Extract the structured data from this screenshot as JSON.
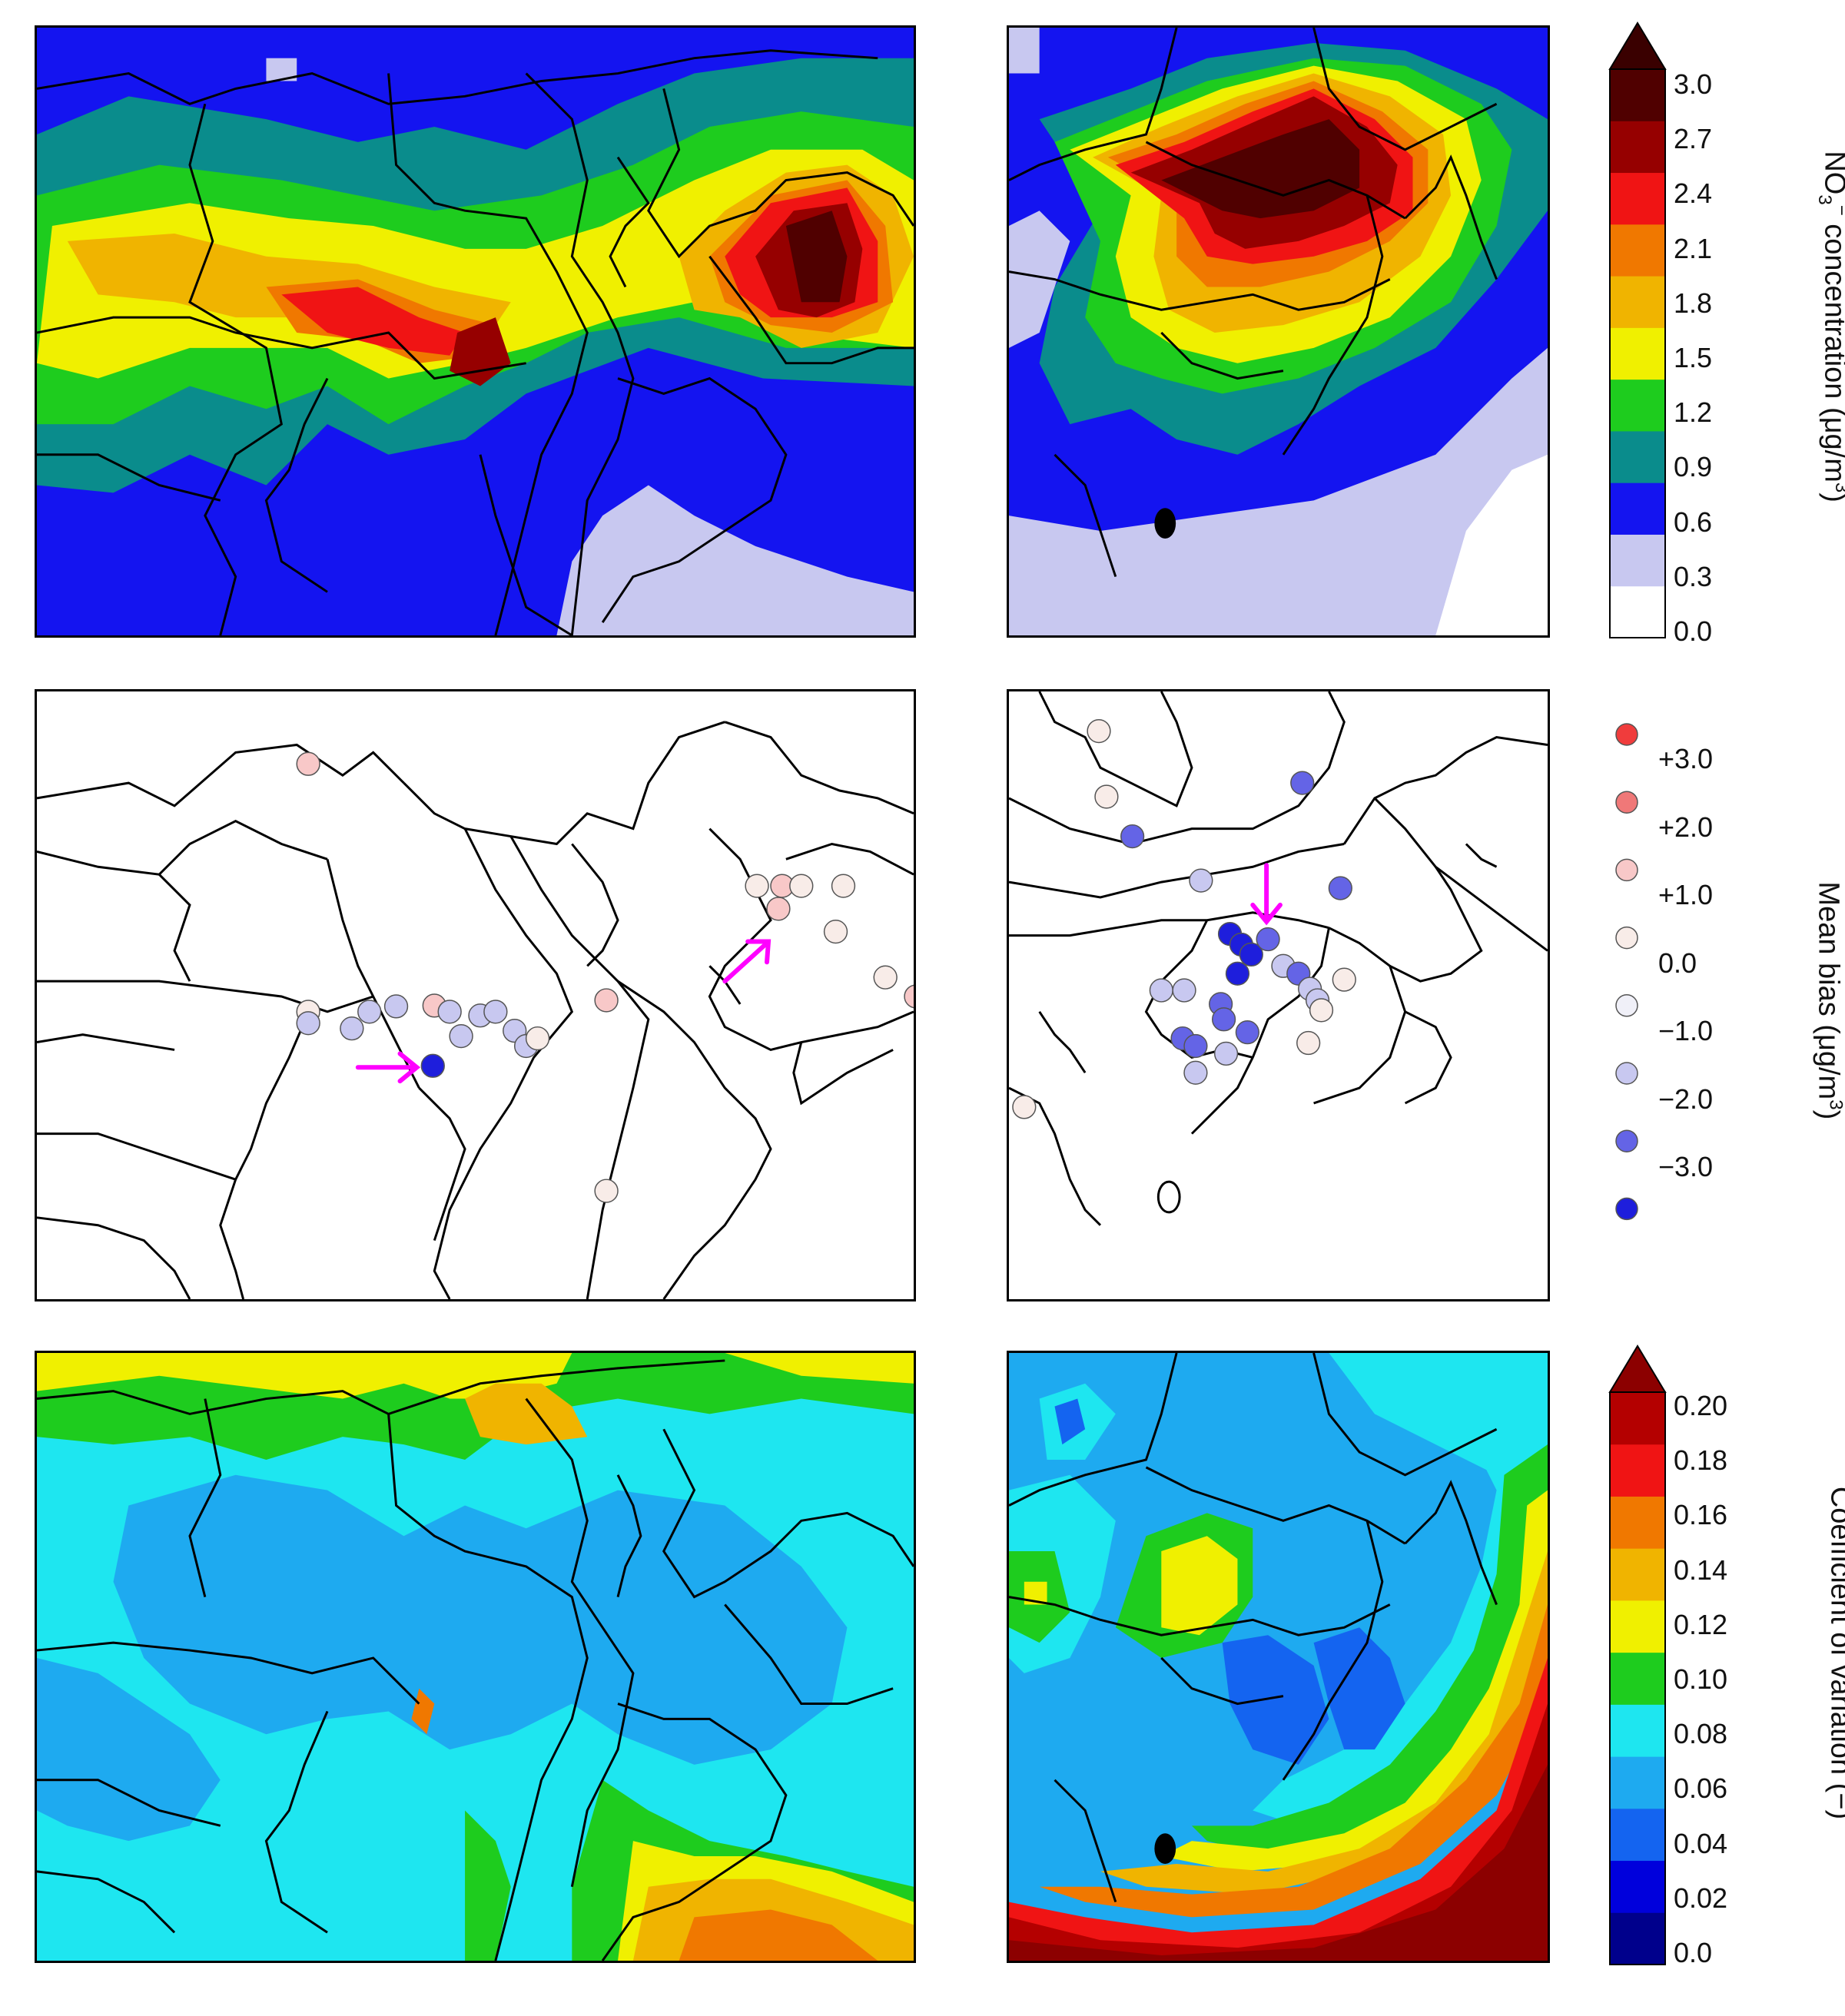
{
  "colorbars": {
    "no3": {
      "ticks": [
        "3.0",
        "2.7",
        "2.4",
        "2.1",
        "1.8",
        "1.5",
        "1.2",
        "0.9",
        "0.6",
        "0.3",
        "0.0"
      ],
      "colors": [
        "#ffffff",
        "#c8c8f0",
        "#1414f0",
        "#0a8c8c",
        "#1ecc1e",
        "#f0f000",
        "#f0b400",
        "#f07800",
        "#f01414",
        "#960000",
        "#500000"
      ],
      "extend_color": "#3a0000",
      "label_pre": "NO",
      "label_mid": "3",
      "label_sup": "−",
      "label_post": " concentration (μg/m",
      "label_unit_sup": "3",
      "label_end": ")"
    },
    "mean_bias": {
      "ticks": [
        "+3.0",
        "+2.0",
        "+1.0",
        "0.0",
        "−1.0",
        "−2.0",
        "−3.0"
      ],
      "colors": [
        "#f03c3c",
        "#f07878",
        "#f8c8c8",
        "#f8ece8",
        "#f0f0f8",
        "#c8c8f0",
        "#6464e6",
        "#1e1edc"
      ],
      "label_pre": "Mean bias (μg/m",
      "label_sup": "3",
      "label_end": ")"
    },
    "cv": {
      "ticks": [
        "0.20",
        "0.18",
        "0.16",
        "0.14",
        "0.12",
        "0.10",
        "0.08",
        "0.06",
        "0.04",
        "0.02",
        "0.0"
      ],
      "colors": [
        "#00008c",
        "#0000dc",
        "#1464f0",
        "#1eaaf0",
        "#1ee6f0",
        "#1ecc1e",
        "#f0f000",
        "#f0b400",
        "#f07800",
        "#f01414",
        "#b40000"
      ],
      "extend_color": "#8c0000",
      "label": "Coefficient of variation (−)"
    }
  },
  "panels": {
    "kansai_no3": {
      "background": "#1414f0",
      "zones": [
        {
          "color": "#0a8c8c"
        },
        {
          "color": "#1ecc1e"
        },
        {
          "color": "#f0f000"
        },
        {
          "color": "#f0b400"
        },
        {
          "color": "#f01414"
        },
        {
          "color": "#960000"
        },
        {
          "color": "#500000"
        },
        {
          "color": "#c8c8f0"
        }
      ]
    },
    "kanto_no3": {
      "background": "#1414f0"
    },
    "kansai_cv": {
      "background": "#1ee6f0"
    },
    "kanto_cv": {
      "background": "#1eaaf0"
    }
  },
  "stations": {
    "kansai": [
      {
        "bias": 0.8
      },
      {
        "bias": 0.3
      },
      {
        "bias": -1.2
      },
      {
        "bias": -1.5
      },
      {
        "bias": -1.7
      },
      {
        "bias": -1.3
      },
      {
        "bias": 0.6
      },
      {
        "bias": -1.0
      },
      {
        "bias": -1.4
      },
      {
        "bias": -1.6
      },
      {
        "bias": -1.5
      },
      {
        "bias": -1.8
      },
      {
        "bias": -3.1
      },
      {
        "bias": -1.6
      },
      {
        "bias": 0.5
      },
      {
        "bias": 0.6
      },
      {
        "bias": 0.4
      },
      {
        "bias": 0.6
      },
      {
        "bias": 0.5
      },
      {
        "bias": 0.3
      },
      {
        "bias": 0.7
      },
      {
        "bias": 0.4
      },
      {
        "bias": 0.2
      },
      {
        "bias": 0.2
      },
      {
        "bias": 0.8
      }
    ],
    "kanto": [
      {
        "bias": 0.2
      },
      {
        "bias": 0.1
      },
      {
        "bias": -2.6
      },
      {
        "bias": -2.8
      },
      {
        "bias": -1.4
      },
      {
        "bias": -2.9
      },
      {
        "bias": -3.2
      },
      {
        "bias": -3.3
      },
      {
        "bias": -3.1
      },
      {
        "bias": -2.9
      },
      {
        "bias": -3.0
      },
      {
        "bias": -1.7
      },
      {
        "bias": -2.3
      },
      {
        "bias": -1.2
      },
      {
        "bias": -1.0
      },
      {
        "bias": 0.1
      },
      {
        "bias": 0.3
      },
      {
        "bias": -1.4
      },
      {
        "bias": -1.3
      },
      {
        "bias": -2.7
      },
      {
        "bias": -2.8
      },
      {
        "bias": -2.4
      },
      {
        "bias": -2.5
      },
      {
        "bias": -1.1
      },
      {
        "bias": -2.6
      },
      {
        "bias": -1.5
      },
      {
        "bias": 0.4
      },
      {
        "bias": 0.2
      }
    ]
  }
}
